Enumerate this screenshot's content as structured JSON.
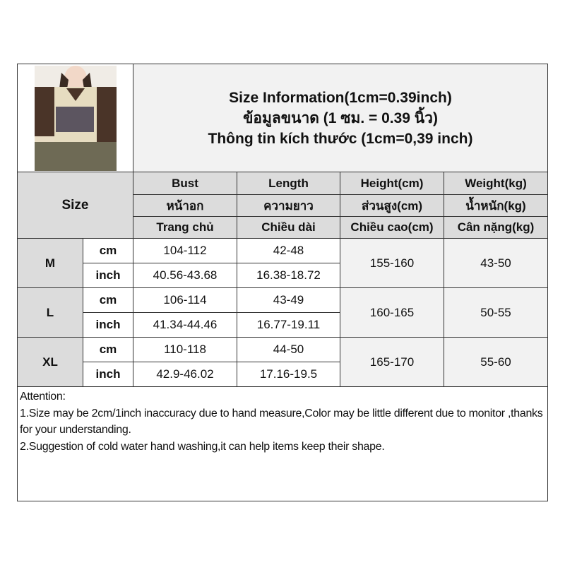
{
  "title": {
    "line1": "Size Information(1cm=0.39inch)",
    "line2": "ข้อมูลขนาด (1 ซม. = 0.39 นิ้ว)",
    "line3": "Thông tin kích thước (1cm=0,39 inch)"
  },
  "header": {
    "size": "Size",
    "columns": [
      {
        "en": "Bust",
        "th": "หน้าอก",
        "vi": "Trang chủ"
      },
      {
        "en": "Length",
        "th": "ความยาว",
        "vi": "Chiều dài"
      },
      {
        "en": "Height(cm)",
        "th": "ส่วนสูง(cm)",
        "vi": "Chiều cao(cm)"
      },
      {
        "en": "Weight(kg)",
        "th": "น้ำหนัก(kg)",
        "vi": "Cân nặng(kg)"
      }
    ]
  },
  "units": {
    "cm": "cm",
    "inch": "inch"
  },
  "rows": [
    {
      "size": "M",
      "bust_cm": "104-112",
      "length_cm": "42-48",
      "bust_inch": "40.56-43.68",
      "length_inch": "16.38-18.72",
      "height": "155-160",
      "weight": "43-50"
    },
    {
      "size": "L",
      "bust_cm": "106-114",
      "length_cm": "43-49",
      "bust_inch": "41.34-44.46",
      "length_inch": "16.77-19.11",
      "height": "160-165",
      "weight": "50-55"
    },
    {
      "size": "XL",
      "bust_cm": "110-118",
      "length_cm": "44-50",
      "bust_inch": "42.9-46.02",
      "length_inch": "17.16-19.5",
      "height": "165-170",
      "weight": "55-60"
    }
  ],
  "attention": {
    "heading": "Attention:",
    "note1": "1.Size may be 2cm/1inch inaccuracy due to hand measure,Color may be little different due to monitor ,thanks for your understanding.",
    "note2": "2.Suggestion of cold water hand washing,it can help items keep their shape."
  }
}
